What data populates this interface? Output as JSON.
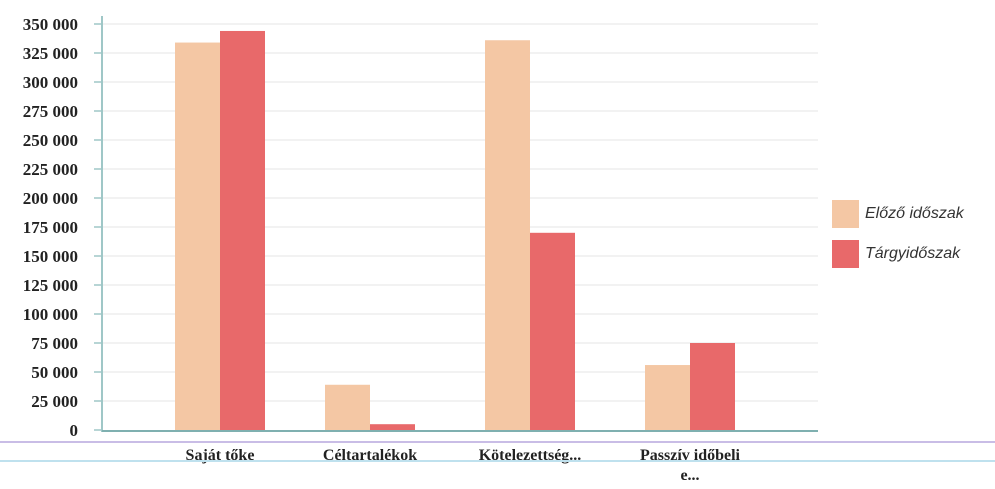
{
  "chart_data": {
    "type": "bar",
    "categories": [
      "Saját tőke",
      "Céltartalékok",
      "Kötelezettség...",
      "Passzív időbeli e..."
    ],
    "category_lines": [
      [
        "Saját tőke"
      ],
      [
        "Céltartalékok"
      ],
      [
        "Kötelezettség..."
      ],
      [
        "Passzív időbeli",
        "e..."
      ]
    ],
    "series": [
      {
        "name": "Előző időszak",
        "values": [
          334000,
          39000,
          336000,
          56000
        ],
        "color": "#f4c7a4"
      },
      {
        "name": "Tárgyidőszak",
        "values": [
          344000,
          5000,
          170000,
          75000
        ],
        "color": "#e8696a"
      }
    ],
    "ylim": [
      0,
      350000
    ],
    "yticks": [
      0,
      25000,
      50000,
      75000,
      100000,
      125000,
      150000,
      175000,
      200000,
      225000,
      250000,
      275000,
      300000,
      325000,
      350000
    ],
    "ytick_labels": [
      "0",
      "25 000",
      "50 000",
      "75 000",
      "100 000",
      "125 000",
      "150 000",
      "175 000",
      "200 000",
      "225 000",
      "250 000",
      "275 000",
      "300 000",
      "325 000",
      "350 000"
    ],
    "grid": true,
    "legend_position": "right"
  }
}
